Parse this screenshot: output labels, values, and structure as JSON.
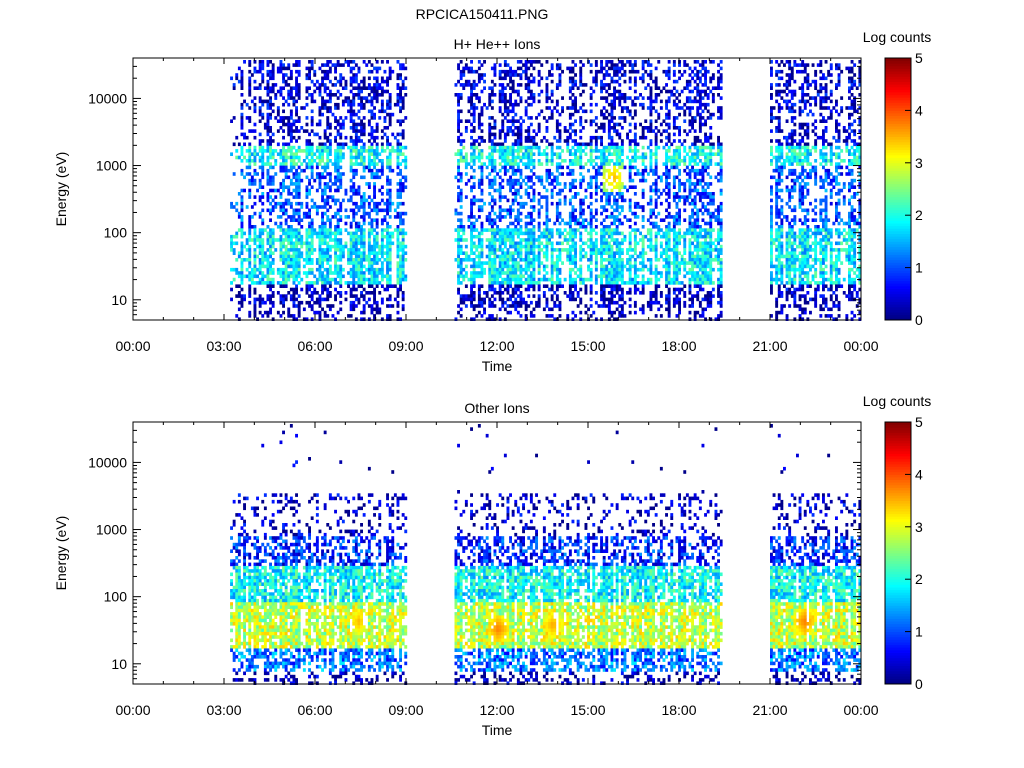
{
  "figure": {
    "title": "RPCICA150411.PNG"
  },
  "chart_data": [
    {
      "type": "heatmap",
      "title": "H+ He++ Ions",
      "xlabel": "Time",
      "ylabel": "Energy (eV)",
      "xticks": [
        "00:00",
        "03:00",
        "06:00",
        "09:00",
        "12:00",
        "15:00",
        "18:00",
        "21:00",
        "00:00"
      ],
      "xlim_hours": [
        0,
        24
      ],
      "yscale": "log",
      "ylim": [
        5,
        40000
      ],
      "yticks": [
        10,
        100,
        1000,
        10000
      ],
      "ytick_labels": [
        "10",
        "100",
        "1000",
        "10000"
      ],
      "colorbar": {
        "label": "Log counts",
        "range": [
          0,
          5
        ],
        "ticks": [
          "0",
          "1",
          "2",
          "3",
          "4",
          "5"
        ],
        "colormap": "jet"
      },
      "data_intervals_hours": [
        [
          3.2,
          9.0
        ],
        [
          10.6,
          19.4
        ],
        [
          21.0,
          24.0
        ]
      ],
      "energy_bands": [
        {
          "energy_ev": 1500,
          "log_counts": 2.2
        },
        {
          "energy_ev": 50,
          "log_counts": 2.0
        }
      ],
      "peak": {
        "time_hours": 15.8,
        "energy_ev": 700,
        "log_counts": 3.5
      }
    },
    {
      "type": "heatmap",
      "title": "Other Ions",
      "xlabel": "Time",
      "ylabel": "Energy (eV)",
      "xticks": [
        "00:00",
        "03:00",
        "06:00",
        "09:00",
        "12:00",
        "15:00",
        "18:00",
        "21:00",
        "00:00"
      ],
      "xlim_hours": [
        0,
        24
      ],
      "yscale": "log",
      "ylim": [
        5,
        40000
      ],
      "yticks": [
        10,
        100,
        1000,
        10000
      ],
      "ytick_labels": [
        "10",
        "100",
        "1000",
        "10000"
      ],
      "colorbar": {
        "label": "Log counts",
        "range": [
          0,
          5
        ],
        "ticks": [
          "0",
          "1",
          "2",
          "3",
          "4",
          "5"
        ],
        "colormap": "jet"
      },
      "data_intervals_hours": [
        [
          3.2,
          9.0
        ],
        [
          10.6,
          19.4
        ],
        [
          21.0,
          24.0
        ]
      ],
      "energy_bands": [
        {
          "energy_ev": 40,
          "log_counts": 3.0
        },
        {
          "energy_ev": 150,
          "log_counts": 1.8
        }
      ],
      "peaks": [
        {
          "time_hours": 12.0,
          "energy_ev": 35,
          "log_counts": 3.8
        },
        {
          "time_hours": 13.8,
          "energy_ev": 40,
          "log_counts": 3.6
        },
        {
          "time_hours": 22.1,
          "energy_ev": 45,
          "log_counts": 3.8
        },
        {
          "time_hours": 7.4,
          "energy_ev": 45,
          "log_counts": 3.5
        }
      ]
    }
  ]
}
